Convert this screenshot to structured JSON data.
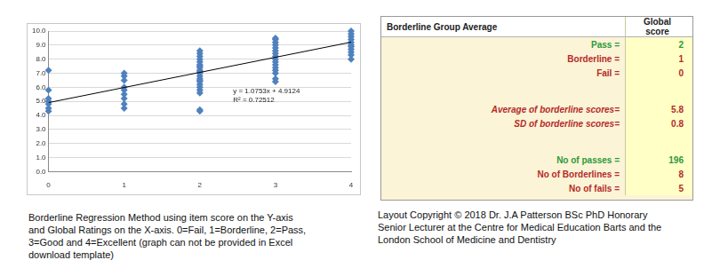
{
  "chart_data": {
    "type": "scatter",
    "series": [
      {
        "type": "scatter",
        "color": "#4f81bd",
        "marker": "diamond",
        "x": [
          0,
          0,
          0,
          0,
          0,
          0,
          0,
          1,
          1,
          1,
          1,
          1,
          1,
          1,
          1,
          1,
          2,
          2,
          2,
          2,
          2,
          2,
          2,
          2,
          2,
          2,
          2,
          2,
          2,
          2,
          2,
          2,
          2,
          2,
          2,
          2,
          2,
          3,
          3,
          3,
          3,
          3,
          3,
          3,
          3,
          3,
          3,
          3,
          3,
          3,
          3,
          3,
          3,
          4,
          4,
          4,
          4,
          4,
          4,
          4,
          4,
          4,
          4,
          4
        ],
        "values": [
          4.3,
          4.5,
          4.8,
          5.0,
          5.2,
          5.8,
          7.2,
          4.5,
          4.8,
          5.2,
          5.5,
          5.8,
          6.0,
          6.5,
          6.8,
          7.0,
          4.3,
          4.4,
          5.6,
          5.8,
          6.0,
          6.2,
          6.4,
          6.5,
          6.6,
          6.8,
          7.0,
          7.1,
          7.2,
          7.4,
          7.5,
          7.6,
          7.8,
          8.0,
          8.2,
          8.4,
          8.6,
          6.4,
          6.6,
          7.0,
          7.2,
          7.4,
          7.6,
          7.8,
          8.0,
          8.2,
          8.4,
          8.6,
          8.8,
          9.0,
          9.2,
          9.4,
          9.5,
          8.0,
          8.3,
          8.5,
          8.7,
          8.9,
          9.0,
          9.2,
          9.4,
          9.6,
          9.8,
          10.0
        ]
      },
      {
        "type": "line",
        "color": "#000000",
        "marker": "none",
        "x": [
          0,
          4
        ],
        "values": [
          4.91,
          9.21
        ]
      }
    ],
    "xlim": [
      0,
      4
    ],
    "xticks": [
      0,
      1,
      2,
      3,
      4
    ],
    "ylim": [
      0,
      10
    ],
    "yticks": [
      {
        "value": 0,
        "label": "0.0"
      },
      {
        "value": 1,
        "label": "1.0"
      },
      {
        "value": 2,
        "label": "2.0"
      },
      {
        "value": 3,
        "label": "3.0"
      },
      {
        "value": 4,
        "label": "4.0"
      },
      {
        "value": 5,
        "label": "5.0"
      },
      {
        "value": 6,
        "label": "6.0"
      },
      {
        "value": 7,
        "label": "7.0"
      },
      {
        "value": 8,
        "label": "8.0"
      },
      {
        "value": 9,
        "label": "9.0"
      },
      {
        "value": 10,
        "label": "10.0"
      }
    ],
    "grid": true,
    "annotations": [
      "y = 1.0753x + 4.9124",
      "R² = 0.72512"
    ]
  },
  "chart_caption": [
    "Borderline Regression Method using item score on the Y-axis",
    "and Global Ratings on the X-axis. 0=Fail, 1=Borderline, 2=Pass,",
    "3=Good and 4=Excellent (graph can not be provided in Excel",
    "download template)"
  ],
  "table": {
    "header": [
      "Borderline Group Average",
      "Global score"
    ],
    "sections": [
      [
        {
          "label": "Pass =",
          "value": 2,
          "color": "#2e9a3a",
          "value_color": "#2e9a3a"
        },
        {
          "label": "Borderline =",
          "value": 1,
          "color": "#b52a2a",
          "value_color": "#b52a2a"
        },
        {
          "label": "Fail =",
          "value": 0,
          "color": "#b52a2a",
          "value_color": "#b52a2a"
        }
      ],
      [
        {
          "label": "Average of borderline scores=",
          "value": 5.8,
          "color": "#b52a2a",
          "value_color": "#b52a2a"
        },
        {
          "label": "SD of borderline scores=",
          "value": 0.8,
          "color": "#b52a2a",
          "value_color": "#b52a2a"
        }
      ],
      [
        {
          "label": "No of passes =",
          "value": 196,
          "color": "#2e9a3a",
          "value_color": "#2e9a3a"
        },
        {
          "label": "No of Borderlines =",
          "value": 8,
          "color": "#b52a2a",
          "value_color": "#b52a2a"
        },
        {
          "label": "No of fails =",
          "value": 5,
          "color": "#b52a2a",
          "value_color": "#b52a2a"
        }
      ]
    ]
  },
  "copyright": [
    "Layout Copyright © 2018 Dr. J.A Patterson BSc PhD Honorary",
    "Senior Lecturer at the Centre for Medical Education Barts and the",
    "London School of Medicine and Dentistry"
  ]
}
